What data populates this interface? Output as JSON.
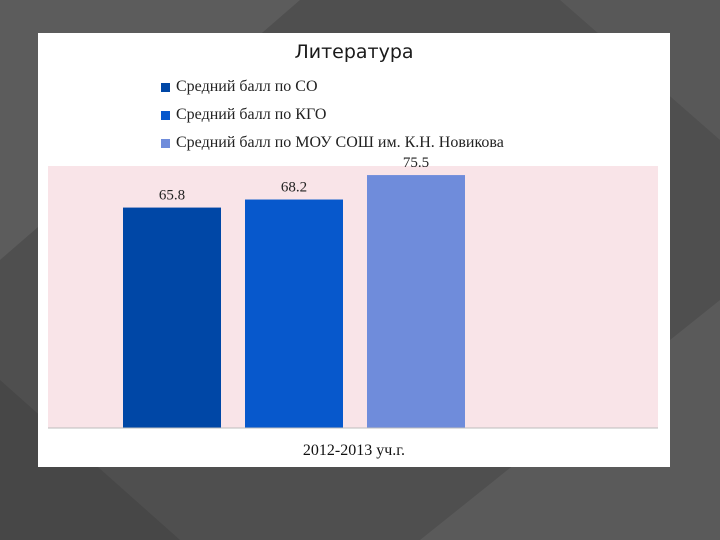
{
  "colors": {
    "background": "#505050",
    "panel": "#ffffff",
    "plot_area": "#f9e4e8"
  },
  "chart_data": {
    "type": "bar",
    "title": "Литература",
    "categories": [
      "2012-2013 уч.г."
    ],
    "series": [
      {
        "name": "Средний балл по СО",
        "values": [
          65.8
        ],
        "color": "#0047a6"
      },
      {
        "name": "Средний балл по КГО",
        "values": [
          68.2
        ],
        "color": "#0758cc"
      },
      {
        "name": "Средний балл по МОУ СОШ им. К.Н. Новикова",
        "values": [
          75.5
        ],
        "color": "#6f8cdb"
      }
    ],
    "ylim": [
      0,
      80
    ],
    "grid": false,
    "legend_position": "top-left",
    "data_labels": true
  }
}
